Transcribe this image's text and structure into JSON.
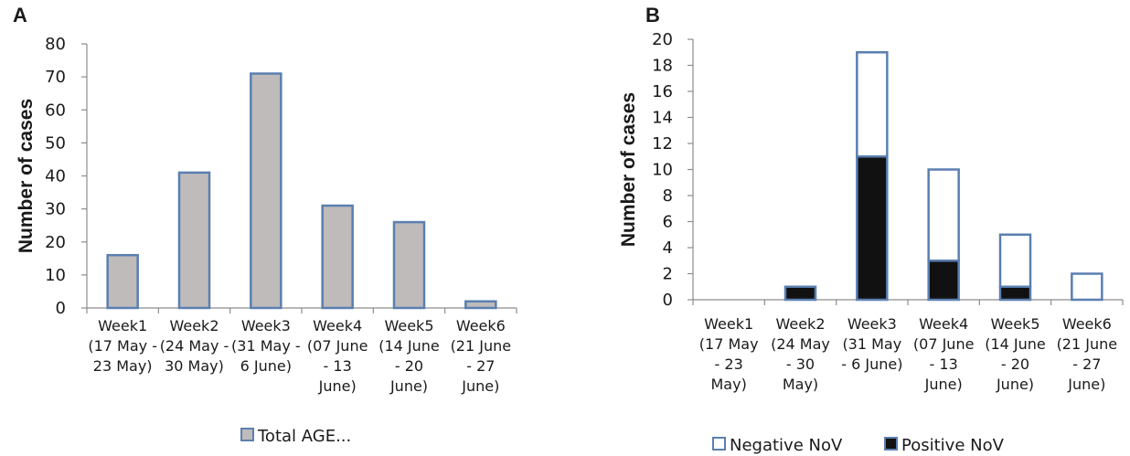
{
  "chart_data": [
    {
      "panel": "A",
      "type": "bar",
      "ylabel": "Number of cases",
      "xlabel": "",
      "ylim": [
        0,
        80
      ],
      "yticks": [
        0,
        10,
        20,
        30,
        40,
        50,
        60,
        70,
        80
      ],
      "categories": [
        [
          "Week1",
          "(17 May -",
          "23 May)"
        ],
        [
          "Week2",
          "(24 May -",
          "30 May)"
        ],
        [
          "Week3",
          "(31 May -",
          "6 June)"
        ],
        [
          "Week4",
          "(07 June",
          "- 13",
          "June)"
        ],
        [
          "Week5",
          "(14 June",
          "- 20",
          "June)"
        ],
        [
          "Week6",
          "(21 June",
          "- 27",
          "June)"
        ]
      ],
      "series": [
        {
          "name": "Total AGE...",
          "values": [
            16,
            41,
            71,
            31,
            26,
            2
          ],
          "color": "#bfbbbb",
          "stroke": "#5a7fb0"
        }
      ],
      "legend_position": "bottom"
    },
    {
      "panel": "B",
      "type": "bar",
      "stacked": true,
      "ylabel": "Number of cases",
      "xlabel": "",
      "ylim": [
        0,
        20
      ],
      "yticks": [
        0,
        2,
        4,
        6,
        8,
        10,
        12,
        14,
        16,
        18,
        20
      ],
      "categories": [
        [
          "Week1",
          "(17 May",
          "- 23",
          "May)"
        ],
        [
          "Week2",
          "(24 May",
          "- 30",
          "May)"
        ],
        [
          "Week3",
          "(31 May",
          "- 6 June)"
        ],
        [
          "Week4",
          "(07 June",
          "- 13",
          "June)"
        ],
        [
          "Week5",
          "(14 June",
          "- 20",
          "June)"
        ],
        [
          "Week6",
          "(21 June",
          "- 27",
          "June)"
        ]
      ],
      "series": [
        {
          "name": "Positive NoV",
          "values": [
            0,
            1,
            11,
            3,
            1,
            0
          ],
          "color": "#111111",
          "stroke": "#5a7fb0"
        },
        {
          "name": "Negative NoV",
          "values": [
            0,
            0,
            8,
            7,
            4,
            2
          ],
          "color": "#ffffff",
          "stroke": "#5a7fb0"
        }
      ],
      "legend_order": [
        "Negative NoV",
        "Positive NoV"
      ],
      "legend_position": "bottom"
    }
  ]
}
